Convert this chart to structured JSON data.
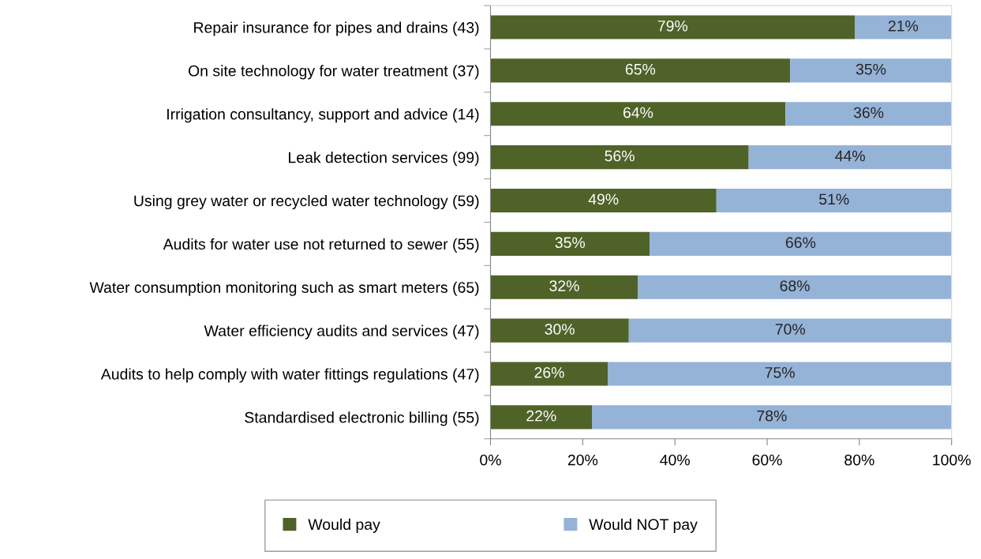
{
  "chart_data": {
    "type": "bar",
    "orientation": "horizontal",
    "stacked": true,
    "categories": [
      "Repair insurance for pipes and drains (43)",
      "On site technology for water treatment (37)",
      "Irrigation consultancy, support and advice (14)",
      "Leak detection services (99)",
      "Using grey water or recycled water technology (59)",
      "Audits for water use not returned to sewer (55)",
      "Water consumption monitoring such as smart meters (65)",
      "Water efficiency audits and services (47)",
      "Audits to help comply with water fittings regulations (47)",
      "Standardised electronic billing (55)"
    ],
    "series": [
      {
        "name": "Would pay",
        "color": "#4f6228",
        "values": [
          79,
          65,
          64,
          56,
          49,
          34.5,
          32,
          30,
          25.5,
          22
        ],
        "value_labels": [
          "79%",
          "65%",
          "64%",
          "56%",
          "49%",
          "35%",
          "32%",
          "30%",
          "26%",
          "22%"
        ]
      },
      {
        "name": "Would NOT pay",
        "color": "#95b3d7",
        "values": [
          21,
          35,
          36,
          44,
          51,
          65.5,
          68,
          70,
          74.5,
          78
        ],
        "value_labels": [
          "21%",
          "35%",
          "36%",
          "44%",
          "51%",
          "66%",
          "68%",
          "70%",
          "75%",
          "78%"
        ]
      }
    ],
    "xlim": [
      0,
      100
    ],
    "xticks": [
      {
        "value": 0,
        "label": "0%"
      },
      {
        "value": 20,
        "label": "20%"
      },
      {
        "value": 40,
        "label": "40%"
      },
      {
        "value": 60,
        "label": "60%"
      },
      {
        "value": 80,
        "label": "80%"
      },
      {
        "value": 100,
        "label": "100%"
      }
    ],
    "grid": false,
    "legend": "bottom"
  }
}
